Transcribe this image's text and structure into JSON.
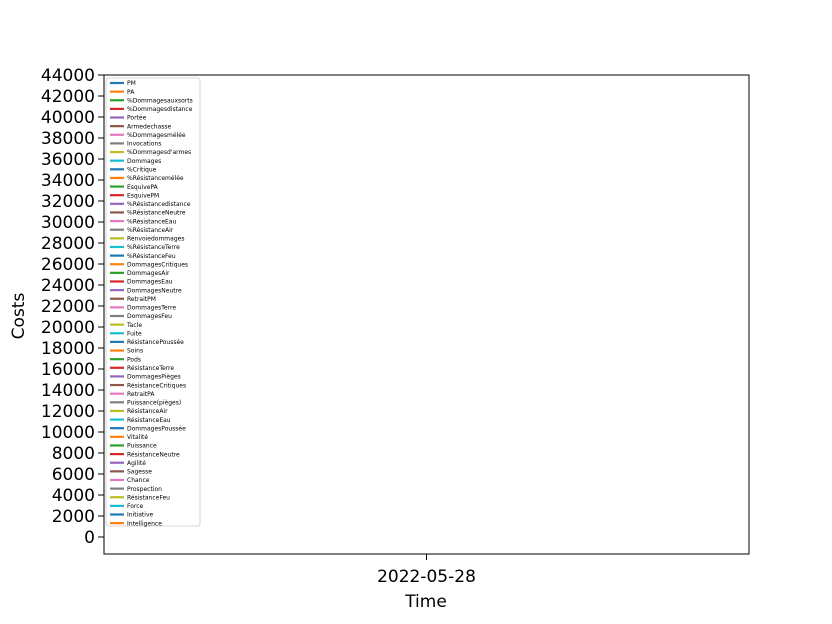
{
  "chart_data": {
    "type": "line",
    "title": "",
    "xlabel": "Time",
    "ylabel": "Costs",
    "x_ticks": [
      "2022-05-28"
    ],
    "ylim": [
      -2000,
      44000
    ],
    "y_ticks": [
      0,
      2000,
      4000,
      6000,
      8000,
      10000,
      12000,
      14000,
      16000,
      18000,
      20000,
      22000,
      24000,
      26000,
      28000,
      30000,
      32000,
      34000,
      36000,
      38000,
      40000,
      42000,
      44000
    ],
    "grid": false,
    "legend_position": "upper left",
    "series": [
      {
        "name": "PM",
        "color": "#1f77b4",
        "values": []
      },
      {
        "name": "PA",
        "color": "#ff7f0e",
        "values": []
      },
      {
        "name": "%Dommagesauxsorts",
        "color": "#2ca02c",
        "values": []
      },
      {
        "name": "%Dommagesdistance",
        "color": "#d62728",
        "values": []
      },
      {
        "name": "Portée",
        "color": "#9467bd",
        "values": []
      },
      {
        "name": "Armedechasse",
        "color": "#8c564b",
        "values": []
      },
      {
        "name": "%Dommagesmélée",
        "color": "#e377c2",
        "values": []
      },
      {
        "name": "Invocations",
        "color": "#7f7f7f",
        "values": []
      },
      {
        "name": "%Dommagesd'armes",
        "color": "#bcbd22",
        "values": []
      },
      {
        "name": "Dommages",
        "color": "#17becf",
        "values": []
      },
      {
        "name": "%Critique",
        "color": "#1f77b4",
        "values": []
      },
      {
        "name": "%Résistancemélée",
        "color": "#ff7f0e",
        "values": []
      },
      {
        "name": "EsquivePA",
        "color": "#2ca02c",
        "values": []
      },
      {
        "name": "EsquivePM",
        "color": "#d62728",
        "values": []
      },
      {
        "name": "%Résistancedistance",
        "color": "#9467bd",
        "values": []
      },
      {
        "name": "%RésistanceNeutre",
        "color": "#8c564b",
        "values": []
      },
      {
        "name": "%RésistanceEau",
        "color": "#e377c2",
        "values": []
      },
      {
        "name": "%RésistanceAir",
        "color": "#7f7f7f",
        "values": []
      },
      {
        "name": "Renvoiedommages",
        "color": "#bcbd22",
        "values": []
      },
      {
        "name": "%RésistanceTerre",
        "color": "#17becf",
        "values": []
      },
      {
        "name": "%RésistanceFeu",
        "color": "#1f77b4",
        "values": []
      },
      {
        "name": "DommagesCritiques",
        "color": "#ff7f0e",
        "values": []
      },
      {
        "name": "DommagesAir",
        "color": "#2ca02c",
        "values": []
      },
      {
        "name": "DommagesEau",
        "color": "#d62728",
        "values": []
      },
      {
        "name": "DommagesNeutre",
        "color": "#9467bd",
        "values": []
      },
      {
        "name": "RetraitPM",
        "color": "#8c564b",
        "values": []
      },
      {
        "name": "DommagesTerre",
        "color": "#e377c2",
        "values": []
      },
      {
        "name": "DommagesFeu",
        "color": "#7f7f7f",
        "values": []
      },
      {
        "name": "Tacle",
        "color": "#bcbd22",
        "values": []
      },
      {
        "name": "Fuite",
        "color": "#17becf",
        "values": []
      },
      {
        "name": "RésistancePoussée",
        "color": "#1f77b4",
        "values": []
      },
      {
        "name": "Soins",
        "color": "#ff7f0e",
        "values": []
      },
      {
        "name": "Pods",
        "color": "#2ca02c",
        "values": []
      },
      {
        "name": "RésistanceTerre",
        "color": "#d62728",
        "values": []
      },
      {
        "name": "DommagesPièges",
        "color": "#9467bd",
        "values": []
      },
      {
        "name": "RésistanceCritiques",
        "color": "#8c564b",
        "values": []
      },
      {
        "name": "RetraitPA",
        "color": "#e377c2",
        "values": []
      },
      {
        "name": "Puissance(pièges)",
        "color": "#7f7f7f",
        "values": []
      },
      {
        "name": "RésistanceAir",
        "color": "#bcbd22",
        "values": []
      },
      {
        "name": "RésistanceEau",
        "color": "#17becf",
        "values": []
      },
      {
        "name": "DommagesPoussée",
        "color": "#1f77b4",
        "values": []
      },
      {
        "name": "Vitalité",
        "color": "#ff7f0e",
        "values": []
      },
      {
        "name": "Puissance",
        "color": "#2ca02c",
        "values": []
      },
      {
        "name": "RésistanceNeutre",
        "color": "#d62728",
        "values": []
      },
      {
        "name": "Agilité",
        "color": "#9467bd",
        "values": []
      },
      {
        "name": "Sagesse",
        "color": "#8c564b",
        "values": []
      },
      {
        "name": "Chance",
        "color": "#e377c2",
        "values": []
      },
      {
        "name": "Prospection",
        "color": "#7f7f7f",
        "values": []
      },
      {
        "name": "RésistanceFeu",
        "color": "#bcbd22",
        "values": []
      },
      {
        "name": "Force",
        "color": "#17becf",
        "values": []
      },
      {
        "name": "Initiative",
        "color": "#1f77b4",
        "values": []
      },
      {
        "name": "Intelligence",
        "color": "#ff7f0e",
        "values": []
      }
    ]
  }
}
